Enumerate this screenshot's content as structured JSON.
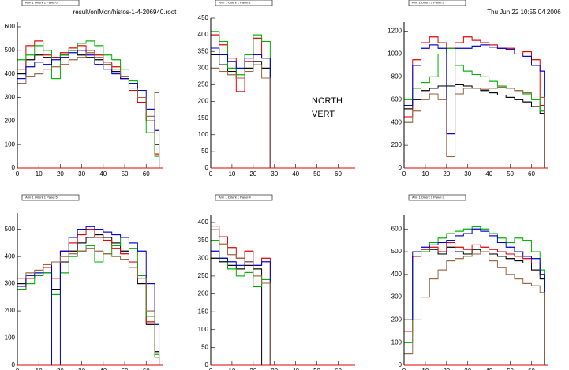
{
  "canvas": {
    "file": "result/onlMon/histos-1-4-206940.root",
    "date": "Thu Jun 22 10:55:04 2006"
  },
  "chart_data": [
    {
      "type": "histogram",
      "title": "Arm 1 Orient 1 Panel 0",
      "bins": [
        0,
        4,
        8,
        12,
        16,
        20,
        24,
        28,
        32,
        36,
        40,
        44,
        48,
        52,
        56,
        60,
        64,
        66
      ],
      "xlim": [
        0,
        68
      ],
      "xticks": [
        0,
        10,
        20,
        30,
        40,
        50,
        60
      ],
      "ylim": [
        0,
        620
      ],
      "yticks": [
        0,
        100,
        200,
        300,
        400,
        500,
        600
      ],
      "series": [
        {
          "color": "#000000",
          "values": [
            400,
            460,
            480,
            470,
            470,
            480,
            500,
            480,
            470,
            460,
            440,
            410,
            380,
            340,
            300,
            200,
            100
          ]
        },
        {
          "color": "#e00000",
          "values": [
            420,
            520,
            540,
            480,
            470,
            490,
            510,
            520,
            500,
            480,
            450,
            430,
            380,
            330,
            280,
            200,
            60
          ]
        },
        {
          "color": "#00b000",
          "values": [
            460,
            480,
            520,
            500,
            380,
            480,
            500,
            530,
            540,
            520,
            480,
            460,
            420,
            370,
            300,
            150,
            50
          ]
        },
        {
          "color": "#0000d0",
          "values": [
            380,
            430,
            450,
            440,
            460,
            470,
            490,
            500,
            480,
            440,
            420,
            400,
            380,
            360,
            330,
            250,
            160
          ]
        },
        {
          "color": "#996644",
          "values": [
            360,
            390,
            400,
            420,
            430,
            440,
            460,
            470,
            490,
            470,
            440,
            420,
            390,
            340,
            300,
            220,
            320
          ]
        }
      ]
    },
    {
      "type": "histogram",
      "title": "Arm 1 Orient 1 Panel 1",
      "annotations": [
        "NORTH",
        "VERT"
      ],
      "bins": [
        0,
        4,
        8,
        12,
        16,
        20,
        24,
        28,
        32,
        36,
        40,
        44,
        48,
        52,
        56,
        60,
        64,
        66
      ],
      "xlim": [
        0,
        68
      ],
      "xticks": [
        0,
        10,
        20,
        30,
        40,
        50,
        60
      ],
      "ylim": [
        0,
        450
      ],
      "yticks": [
        0,
        50,
        100,
        150,
        200,
        250,
        300,
        350,
        400,
        450
      ],
      "series": [
        {
          "color": "#000000",
          "values": [
            340,
            310,
            290,
            270,
            300,
            320,
            300,
            0,
            0,
            0,
            0,
            0,
            0,
            0,
            0,
            0,
            0
          ]
        },
        {
          "color": "#e00000",
          "values": [
            400,
            370,
            330,
            230,
            320,
            390,
            330,
            0,
            0,
            0,
            0,
            0,
            0,
            0,
            0,
            0,
            0
          ]
        },
        {
          "color": "#00b000",
          "values": [
            410,
            380,
            300,
            280,
            340,
            400,
            380,
            0,
            0,
            0,
            0,
            0,
            0,
            0,
            0,
            0,
            0
          ]
        },
        {
          "color": "#0000d0",
          "values": [
            360,
            340,
            320,
            300,
            330,
            340,
            330,
            0,
            0,
            0,
            0,
            0,
            0,
            0,
            0,
            0,
            0
          ]
        },
        {
          "color": "#996644",
          "values": [
            300,
            290,
            280,
            270,
            290,
            310,
            270,
            0,
            0,
            0,
            0,
            0,
            0,
            0,
            0,
            0,
            0
          ]
        }
      ]
    },
    {
      "type": "histogram",
      "title": "Arm 1 Orient 1 Panel 2",
      "bins": [
        0,
        4,
        8,
        12,
        16,
        20,
        24,
        28,
        32,
        36,
        40,
        44,
        48,
        52,
        56,
        60,
        64,
        66
      ],
      "xlim": [
        0,
        68
      ],
      "xticks": [
        0,
        10,
        20,
        30,
        40,
        50,
        60
      ],
      "ylim": [
        0,
        1280
      ],
      "yticks": [
        0,
        200,
        400,
        600,
        800,
        1000,
        1200
      ],
      "series": [
        {
          "color": "#000000",
          "values": [
            520,
            600,
            680,
            700,
            720,
            720,
            730,
            720,
            700,
            680,
            660,
            640,
            620,
            600,
            580,
            540,
            480
          ]
        },
        {
          "color": "#e00000",
          "values": [
            450,
            950,
            1100,
            1150,
            1100,
            1050,
            1100,
            1150,
            1120,
            1100,
            1080,
            1050,
            1050,
            1000,
            1020,
            950,
            550
          ]
        },
        {
          "color": "#00b000",
          "values": [
            600,
            700,
            750,
            800,
            1000,
            1050,
            900,
            850,
            820,
            800,
            760,
            720,
            700,
            680,
            650,
            600,
            500
          ]
        },
        {
          "color": "#0000d0",
          "values": [
            550,
            900,
            1050,
            1080,
            1050,
            300,
            1050,
            1050,
            1070,
            1080,
            1060,
            1050,
            1040,
            1000,
            980,
            900,
            850
          ]
        },
        {
          "color": "#996644",
          "values": [
            400,
            500,
            600,
            650,
            600,
            100,
            650,
            700,
            700,
            690,
            700,
            710,
            700,
            680,
            660,
            640,
            620
          ]
        }
      ]
    },
    {
      "type": "histogram",
      "title": "Arm 1 Orient 1 Panel 5",
      "bins": [
        0,
        4,
        8,
        12,
        16,
        20,
        24,
        28,
        32,
        36,
        40,
        44,
        48,
        52,
        56,
        60,
        64,
        66
      ],
      "xlim": [
        0,
        68
      ],
      "xticks": [
        0,
        10,
        20,
        30,
        40,
        50,
        60
      ],
      "ylim": [
        0,
        560
      ],
      "yticks": [
        0,
        100,
        200,
        300,
        400,
        500
      ],
      "series": [
        {
          "color": "#000000",
          "values": [
            300,
            320,
            330,
            340,
            280,
            380,
            420,
            450,
            470,
            480,
            470,
            450,
            420,
            380,
            300,
            150,
            50
          ]
        },
        {
          "color": "#e00000",
          "values": [
            280,
            320,
            330,
            360,
            320,
            420,
            450,
            480,
            500,
            470,
            460,
            430,
            410,
            380,
            330,
            160,
            30
          ]
        },
        {
          "color": "#00b000",
          "values": [
            280,
            300,
            330,
            340,
            260,
            340,
            400,
            420,
            440,
            380,
            410,
            440,
            470,
            430,
            330,
            180,
            40
          ]
        },
        {
          "color": "#0000d0",
          "values": [
            290,
            330,
            340,
            370,
            0,
            420,
            470,
            500,
            510,
            500,
            490,
            480,
            470,
            450,
            420,
            300,
            150
          ]
        },
        {
          "color": "#996644",
          "values": [
            320,
            340,
            350,
            370,
            380,
            400,
            410,
            420,
            430,
            420,
            410,
            400,
            390,
            360,
            320,
            200,
            30
          ]
        }
      ]
    },
    {
      "type": "histogram",
      "title": "Arm 1 Orient 1 Panel 4",
      "bins": [
        0,
        4,
        8,
        12,
        16,
        20,
        24,
        28,
        32,
        36,
        40,
        44,
        48,
        52,
        56,
        60,
        64,
        66
      ],
      "xlim": [
        0,
        68
      ],
      "xticks": [
        0,
        10,
        20,
        30,
        40,
        50,
        60
      ],
      "ylim": [
        0,
        420
      ],
      "yticks": [
        0,
        50,
        100,
        150,
        200,
        250,
        300,
        350,
        400
      ],
      "series": [
        {
          "color": "#000000",
          "values": [
            300,
            290,
            280,
            270,
            280,
            270,
            0,
            0,
            0,
            0,
            0,
            0,
            0,
            0,
            0,
            0,
            0
          ]
        },
        {
          "color": "#e00000",
          "values": [
            390,
            360,
            330,
            300,
            320,
            280,
            300,
            0,
            0,
            0,
            0,
            0,
            0,
            0,
            0,
            0,
            0
          ]
        },
        {
          "color": "#00b000",
          "values": [
            350,
            300,
            270,
            250,
            260,
            220,
            240,
            0,
            0,
            0,
            0,
            0,
            0,
            0,
            0,
            0,
            0
          ]
        },
        {
          "color": "#0000d0",
          "values": [
            320,
            300,
            290,
            280,
            290,
            280,
            290,
            0,
            0,
            0,
            0,
            0,
            0,
            0,
            0,
            0,
            0
          ]
        },
        {
          "color": "#996644",
          "values": [
            380,
            340,
            310,
            300,
            290,
            250,
            230,
            0,
            0,
            0,
            0,
            0,
            0,
            0,
            0,
            0,
            0
          ]
        }
      ]
    },
    {
      "type": "histogram",
      "title": "Arm 1 Orient 1 Panel 3",
      "bins": [
        0,
        4,
        8,
        12,
        16,
        20,
        24,
        28,
        32,
        36,
        40,
        44,
        48,
        52,
        56,
        60,
        64,
        66
      ],
      "xlim": [
        0,
        68
      ],
      "xticks": [
        0,
        10,
        20,
        30,
        40,
        50,
        60
      ],
      "ylim": [
        0,
        660
      ],
      "yticks": [
        0,
        100,
        200,
        300,
        400,
        500,
        600
      ],
      "series": [
        {
          "color": "#000000",
          "values": [
            200,
            480,
            500,
            510,
            490,
            520,
            500,
            490,
            510,
            500,
            490,
            480,
            470,
            460,
            450,
            420,
            380
          ]
        },
        {
          "color": "#e00000",
          "values": [
            150,
            480,
            510,
            520,
            500,
            540,
            520,
            510,
            530,
            520,
            510,
            500,
            490,
            480,
            470,
            450,
            400
          ]
        },
        {
          "color": "#00b000",
          "values": [
            100,
            450,
            500,
            540,
            560,
            580,
            590,
            600,
            610,
            600,
            580,
            560,
            540,
            560,
            550,
            500,
            420
          ]
        },
        {
          "color": "#0000d0",
          "values": [
            200,
            500,
            520,
            530,
            540,
            550,
            570,
            580,
            600,
            590,
            570,
            540,
            520,
            500,
            480,
            470,
            400
          ]
        },
        {
          "color": "#996644",
          "values": [
            50,
            200,
            300,
            380,
            420,
            460,
            470,
            480,
            490,
            500,
            460,
            430,
            400,
            380,
            360,
            350,
            320
          ]
        }
      ]
    }
  ]
}
